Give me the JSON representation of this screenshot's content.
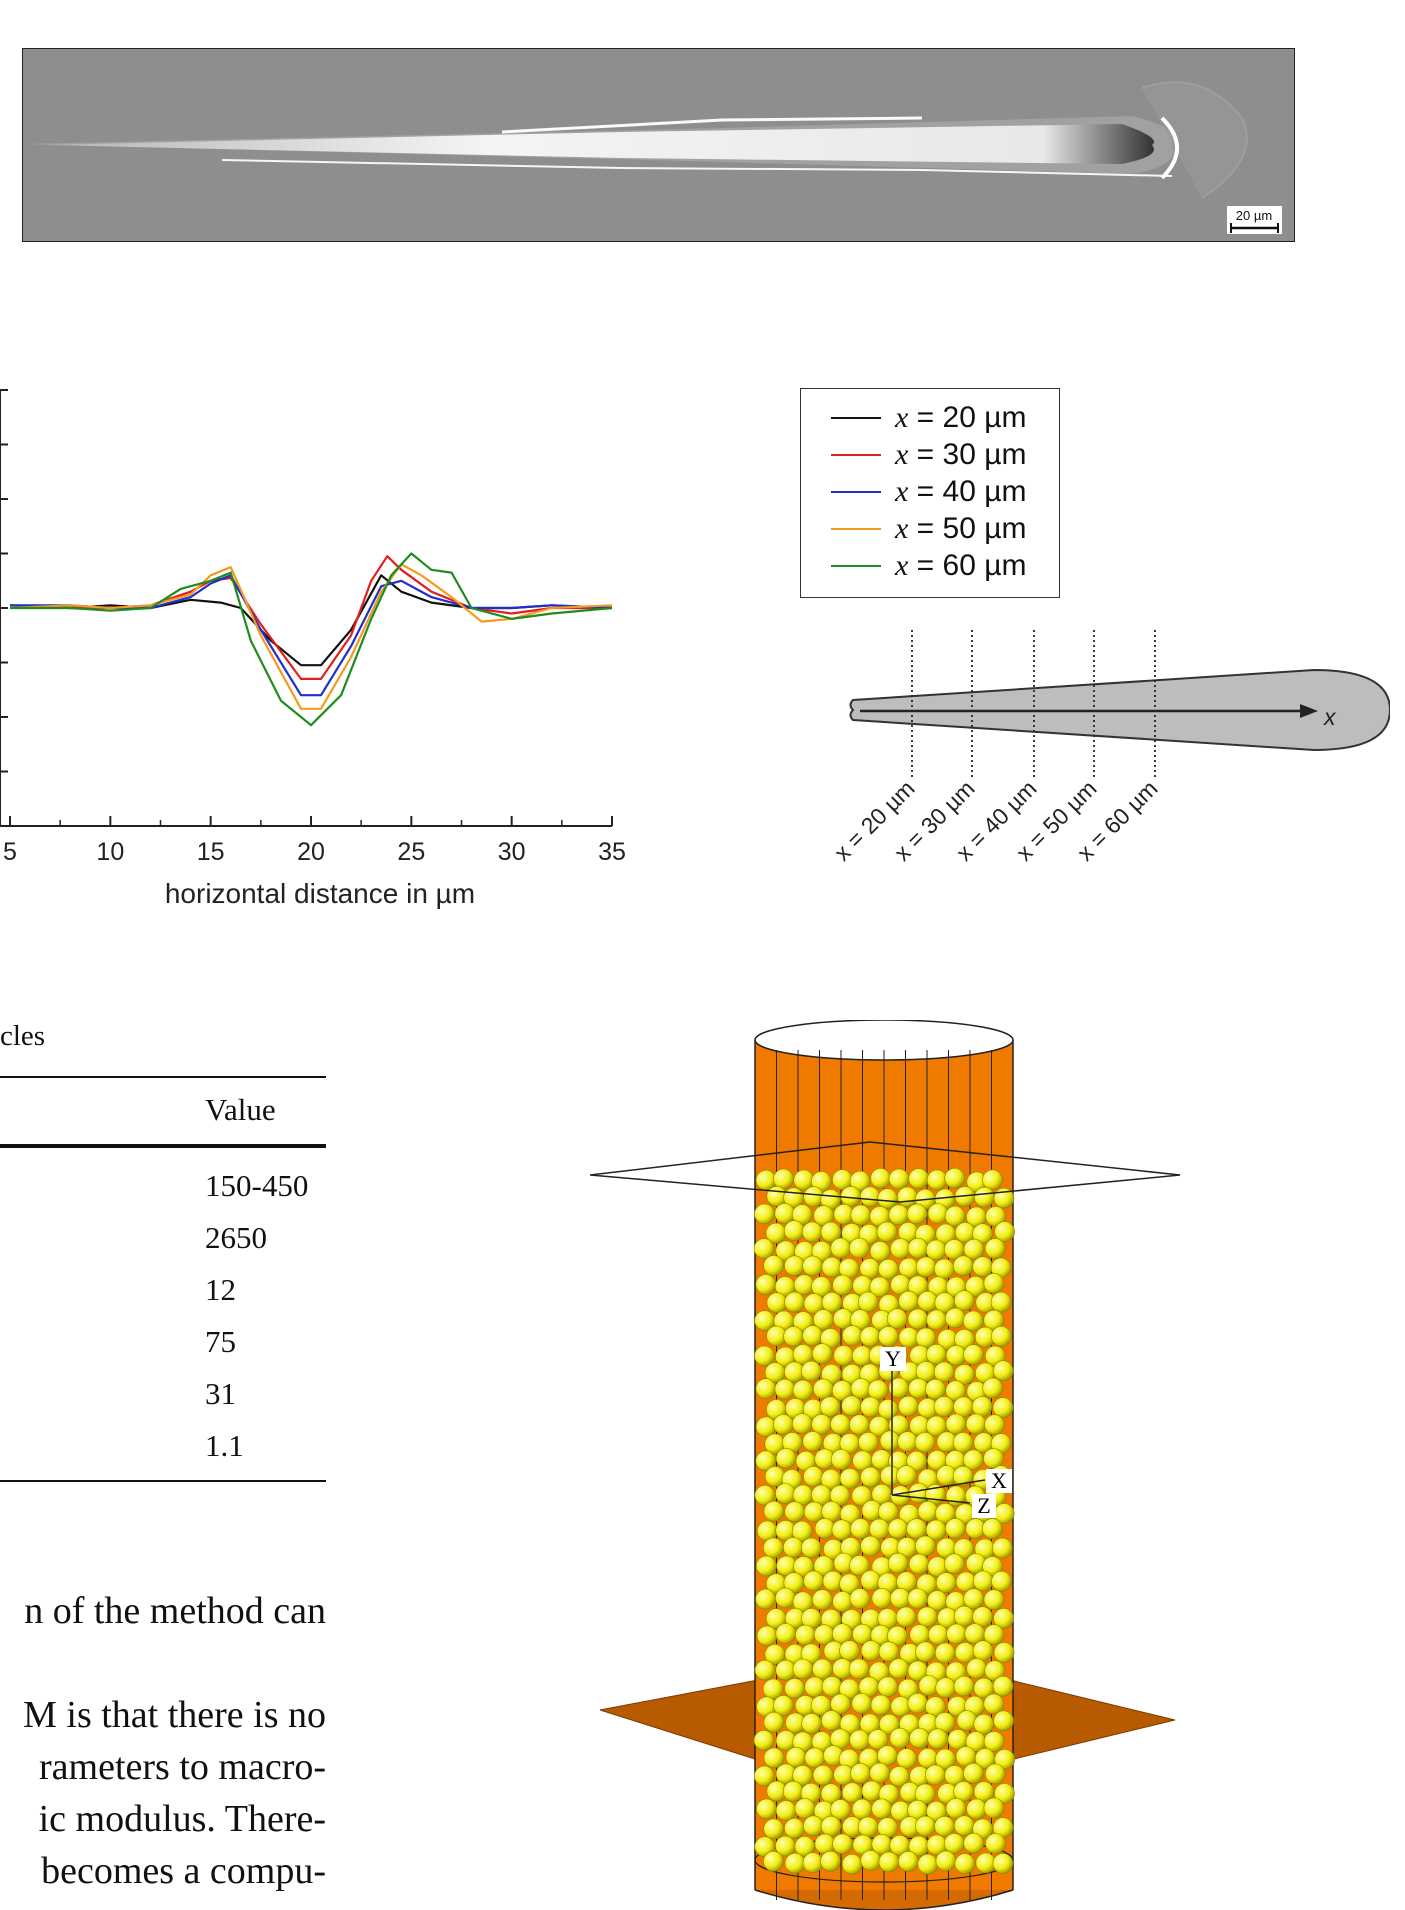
{
  "sem_image": {
    "scale_bar_label": "20 µm"
  },
  "chart_data": {
    "type": "line",
    "xlabel": "horizontal distance in µm",
    "ylabel": "",
    "xlim": [
      5,
      35
    ],
    "x_ticks": [
      5,
      10,
      15,
      20,
      25,
      30,
      35
    ],
    "ylim": [
      -4,
      4
    ],
    "grid": false,
    "legend_placement": "right",
    "series": [
      {
        "name": "x = 20 µm",
        "color": "#111111",
        "x": [
          5,
          8,
          10,
          12,
          14,
          15.5,
          16.5,
          18,
          19.5,
          20.5,
          22,
          23.5,
          24.5,
          26,
          28,
          30,
          32,
          35
        ],
        "y": [
          0.05,
          0.0,
          0.05,
          0.0,
          0.15,
          0.1,
          0.0,
          -0.6,
          -1.05,
          -1.05,
          -0.4,
          0.6,
          0.3,
          0.1,
          0.0,
          0.0,
          0.05,
          0.0
        ]
      },
      {
        "name": "x = 30 µm",
        "color": "#e02020",
        "x": [
          5,
          8,
          10,
          12,
          14,
          15,
          16,
          17.5,
          19.5,
          20.5,
          22,
          23,
          23.8,
          24.5,
          26,
          28,
          30,
          32,
          35
        ],
        "y": [
          0.05,
          0.0,
          0.0,
          0.05,
          0.3,
          0.5,
          0.55,
          -0.3,
          -1.3,
          -1.3,
          -0.5,
          0.5,
          0.95,
          0.7,
          0.3,
          0.0,
          -0.1,
          0.0,
          0.0
        ]
      },
      {
        "name": "x = 40 µm",
        "color": "#1f2fcc",
        "x": [
          5,
          8,
          10,
          12,
          14,
          15,
          16,
          17.5,
          19.5,
          20.5,
          22,
          23.5,
          24.5,
          26,
          28,
          30,
          32,
          35
        ],
        "y": [
          0.05,
          0.05,
          0.0,
          0.0,
          0.2,
          0.45,
          0.6,
          -0.4,
          -1.6,
          -1.6,
          -0.7,
          0.4,
          0.5,
          0.2,
          0.0,
          0.0,
          0.05,
          0.0
        ]
      },
      {
        "name": "x = 50 µm",
        "color": "#f59a1e",
        "x": [
          5,
          8,
          10,
          12,
          14,
          15,
          16,
          17.5,
          19.5,
          20.5,
          22,
          23.5,
          24.5,
          25.5,
          27,
          28.5,
          30,
          32,
          35
        ],
        "y": [
          0.0,
          0.05,
          0.0,
          0.05,
          0.25,
          0.6,
          0.75,
          -0.5,
          -1.85,
          -1.85,
          -0.9,
          0.3,
          0.8,
          0.6,
          0.2,
          -0.25,
          -0.2,
          0.0,
          0.05
        ]
      },
      {
        "name": "x = 60 µm",
        "color": "#1e8c1e",
        "x": [
          5,
          8,
          10,
          12,
          13.5,
          15,
          16,
          17,
          18.5,
          20,
          21.5,
          23,
          24,
          25,
          26,
          27,
          28,
          30,
          32,
          35
        ],
        "y": [
          0.0,
          0.0,
          -0.05,
          0.0,
          0.35,
          0.5,
          0.65,
          -0.6,
          -1.7,
          -2.15,
          -1.6,
          -0.2,
          0.6,
          1.0,
          0.7,
          0.65,
          0.0,
          -0.2,
          -0.1,
          0.0
        ]
      }
    ]
  },
  "legend": {
    "items": [
      {
        "var": "x",
        "text": " = 20 µm",
        "color": "#111111"
      },
      {
        "var": "x",
        "text": " = 30 µm",
        "color": "#e02020"
      },
      {
        "var": "x",
        "text": " = 40 µm",
        "color": "#1f2fcc"
      },
      {
        "var": "x",
        "text": " = 50 µm",
        "color": "#f59a1e"
      },
      {
        "var": "x",
        "text": " = 60 µm",
        "color": "#1e8c1e"
      }
    ]
  },
  "schematic": {
    "axis_label": "x",
    "section_labels": [
      "x = 20 µm",
      "x = 30 µm",
      "x = 40 µm",
      "x = 50 µm",
      "x = 60 µm"
    ]
  },
  "table": {
    "caption": "cles",
    "header": "Value",
    "values": [
      "150-450",
      "2650",
      "12",
      "75",
      "31",
      "1.1"
    ]
  },
  "body_text": [
    "n of the method can",
    "",
    "M is that there is no",
    "rameters to macro-",
    "ic modulus. There-",
    "becomes a compu-"
  ],
  "dem_render": {
    "axis_labels": {
      "y": "Y",
      "x": "X",
      "z": "Z"
    },
    "colors": {
      "container": "#f07a00",
      "particles": "#f4f21a",
      "plate": "#b85a00"
    }
  }
}
